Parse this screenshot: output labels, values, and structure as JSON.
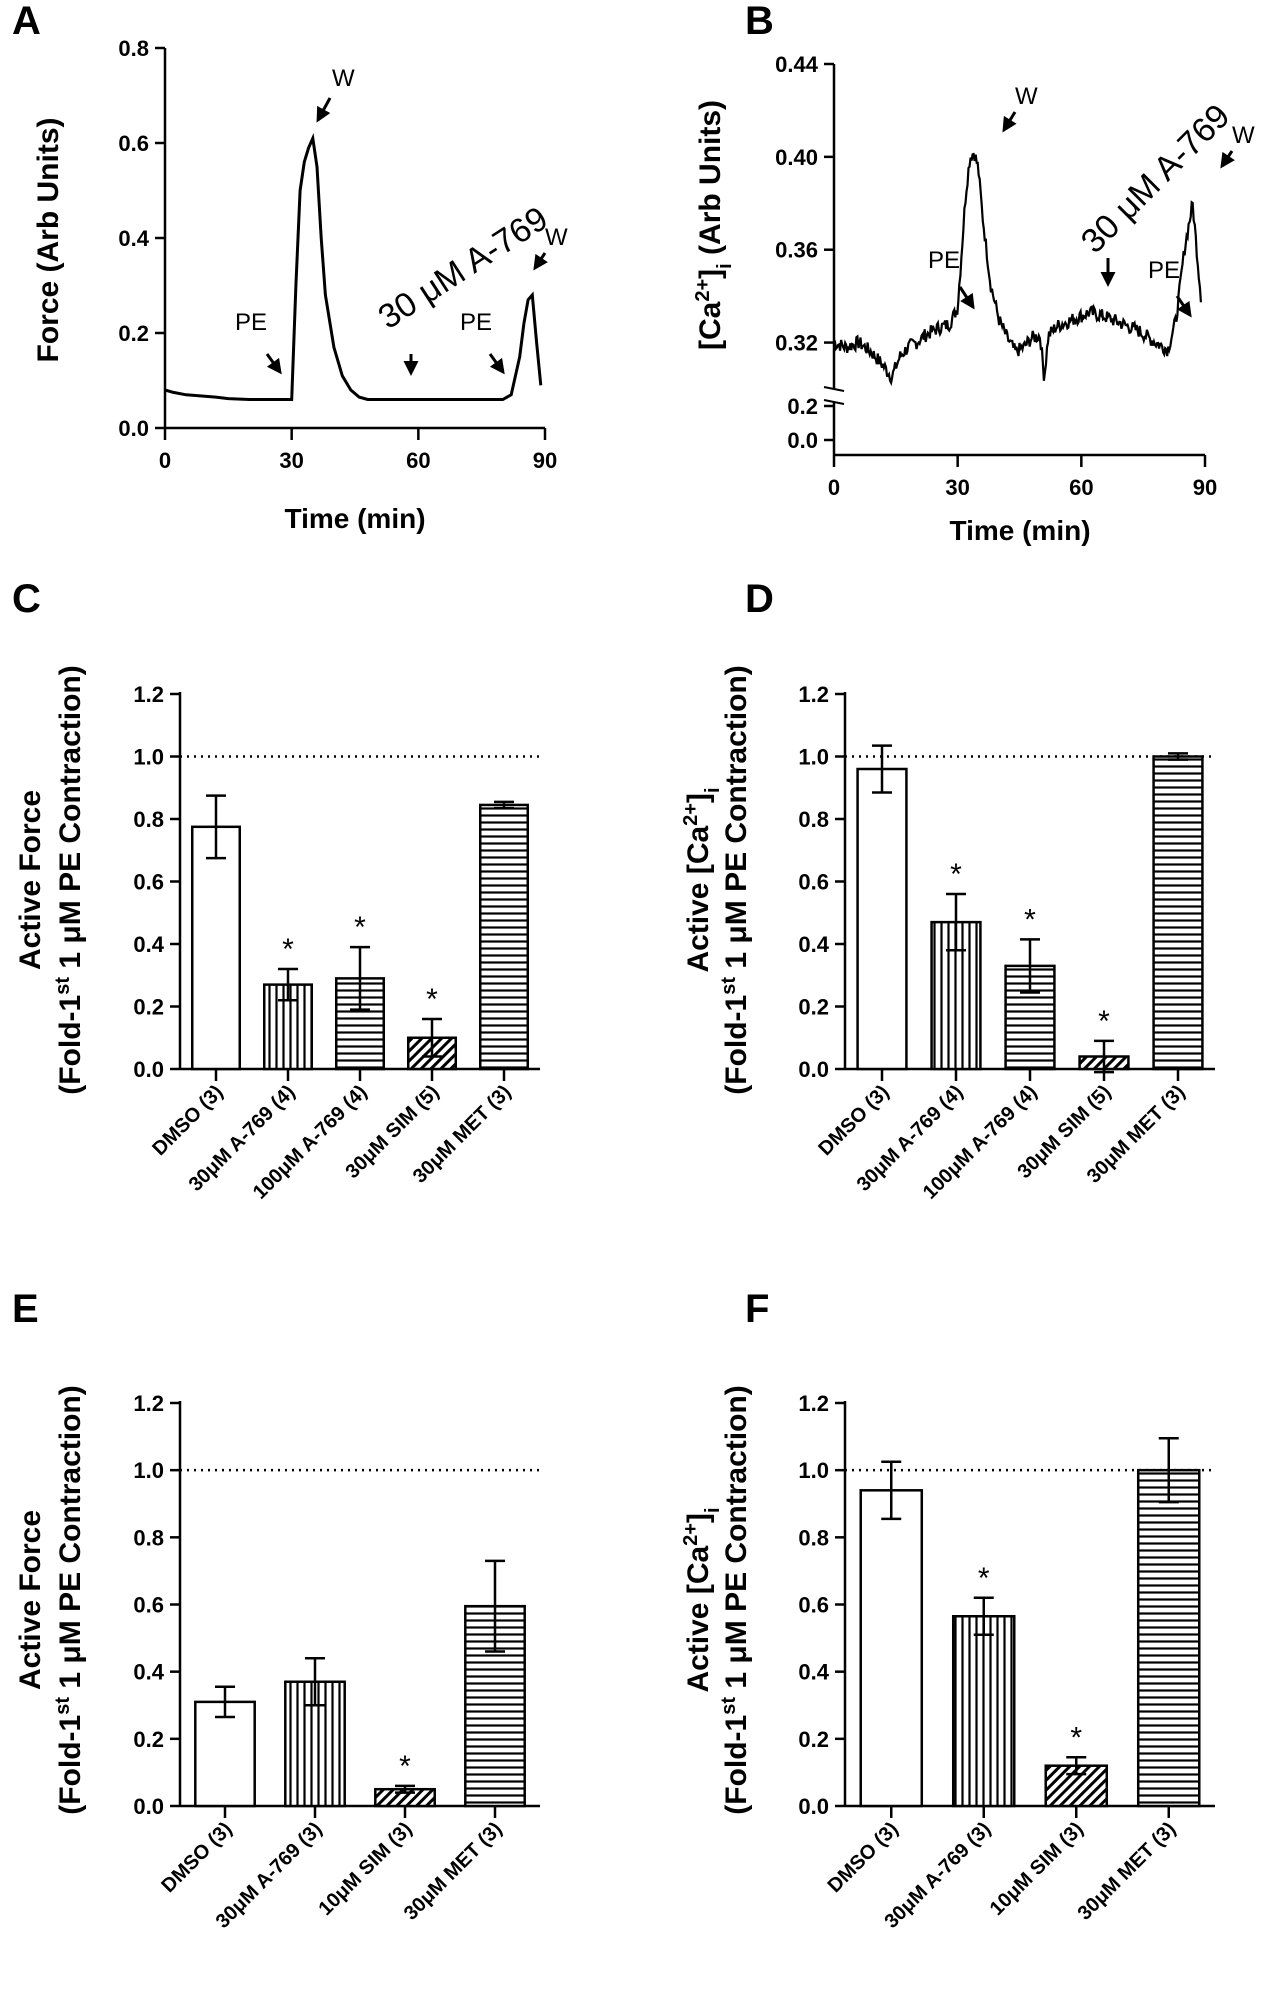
{
  "chart_data": [
    {
      "panel": "A",
      "type": "line",
      "xlabel": "Time (min)",
      "ylabel": "Force (Arb Units)",
      "xlim": [
        0,
        90
      ],
      "ylim": [
        0,
        0.8
      ],
      "xticks": [
        "0",
        "30",
        "60",
        "90"
      ],
      "yticks": [
        "0.0",
        "0.2",
        "0.4",
        "0.6",
        "0.8"
      ],
      "x": [
        0,
        2,
        5,
        8,
        12,
        15,
        20,
        25,
        28,
        30,
        31,
        32,
        33,
        34,
        35,
        36,
        37,
        38,
        40,
        42,
        44,
        46,
        48,
        50,
        55,
        60,
        65,
        70,
        75,
        80,
        82,
        84,
        85,
        86,
        87,
        88,
        89
      ],
      "y": [
        0.08,
        0.075,
        0.07,
        0.068,
        0.065,
        0.062,
        0.06,
        0.06,
        0.06,
        0.06,
        0.3,
        0.5,
        0.56,
        0.59,
        0.61,
        0.55,
        0.4,
        0.28,
        0.17,
        0.11,
        0.08,
        0.065,
        0.06,
        0.06,
        0.06,
        0.06,
        0.06,
        0.06,
        0.06,
        0.06,
        0.07,
        0.15,
        0.22,
        0.27,
        0.28,
        0.18,
        0.09
      ],
      "annotations": [
        "PE",
        "W",
        "30 μM  A-769",
        "PE",
        "W"
      ]
    },
    {
      "panel": "B",
      "type": "line",
      "xlabel": "Time (min)",
      "ylabel": "[Ca2+]i (Arb Units)",
      "xlim": [
        0,
        90
      ],
      "ylim_upper": [
        0.3,
        0.44
      ],
      "ylim_lower": [
        0,
        0.2
      ],
      "xticks": [
        "0",
        "30",
        "60",
        "90"
      ],
      "yticks": [
        "0.32",
        "0.36",
        "0.40",
        "0.44"
      ],
      "yticks_lower": [
        "0.0",
        "0.2"
      ],
      "x": [
        0,
        3,
        6,
        9,
        12,
        14,
        16,
        18,
        20,
        22,
        25,
        28,
        30,
        31,
        32,
        33,
        34,
        35,
        36,
        38,
        40,
        42,
        44,
        46,
        48,
        50,
        51,
        52,
        54,
        58,
        62,
        66,
        70,
        74,
        78,
        81,
        83,
        85,
        86,
        87,
        88,
        89
      ],
      "y": [
        0.32,
        0.318,
        0.32,
        0.316,
        0.31,
        0.305,
        0.314,
        0.318,
        0.32,
        0.323,
        0.326,
        0.328,
        0.335,
        0.36,
        0.385,
        0.4,
        0.402,
        0.395,
        0.375,
        0.345,
        0.33,
        0.322,
        0.316,
        0.318,
        0.322,
        0.323,
        0.305,
        0.323,
        0.327,
        0.33,
        0.333,
        0.331,
        0.328,
        0.325,
        0.32,
        0.317,
        0.33,
        0.36,
        0.37,
        0.38,
        0.36,
        0.34
      ],
      "annotations": [
        "PE",
        "W",
        "30 μM  A-769",
        "PE",
        "W"
      ]
    },
    {
      "panel": "C",
      "type": "bar",
      "ylabel_line1": "Active Force",
      "ylabel_line2": "(Fold-1st 1 μM PE Contraction)",
      "ylim": [
        0,
        1.2
      ],
      "yticks": [
        "0.0",
        "0.2",
        "0.4",
        "0.6",
        "0.8",
        "1.0",
        "1.2"
      ],
      "reference_line": 1.0,
      "categories": [
        "DMSO (3)",
        "30μM A-769 (4)",
        "100μM A-769 (4)",
        "30μM SIM (5)",
        "30μM MET (3)"
      ],
      "values": [
        0.775,
        0.27,
        0.29,
        0.1,
        0.845
      ],
      "errors": [
        0.1,
        0.05,
        0.1,
        0.06,
        0.01
      ],
      "significant": [
        false,
        true,
        true,
        true,
        false
      ],
      "patterns": [
        "none",
        "vertical",
        "horizontal",
        "diagonal",
        "horizontal"
      ]
    },
    {
      "panel": "D",
      "type": "bar",
      "ylabel_line1": "Active [Ca2+]i",
      "ylabel_line2": "(Fold-1st 1 μM PE Contraction)",
      "ylim": [
        0,
        1.2
      ],
      "yticks": [
        "0.0",
        "0.2",
        "0.4",
        "0.6",
        "0.8",
        "1.0",
        "1.2"
      ],
      "reference_line": 1.0,
      "categories": [
        "DMSO (3)",
        "30μM A-769 (4)",
        "100μM A-769 (4)",
        "30μM SIM (5)",
        "30μM MET (3)"
      ],
      "values": [
        0.96,
        0.47,
        0.33,
        0.04,
        1.0
      ],
      "errors": [
        0.075,
        0.09,
        0.085,
        0.05,
        0.01
      ],
      "significant": [
        false,
        true,
        true,
        true,
        false
      ],
      "patterns": [
        "none",
        "vertical",
        "horizontal",
        "diagonal",
        "horizontal"
      ]
    },
    {
      "panel": "E",
      "type": "bar",
      "ylabel_line1": "Active Force",
      "ylabel_line2": "(Fold-1st 1 μM PE Contraction)",
      "ylim": [
        0,
        1.2
      ],
      "yticks": [
        "0.0",
        "0.2",
        "0.4",
        "0.6",
        "0.8",
        "1.0",
        "1.2"
      ],
      "reference_line": 1.0,
      "categories": [
        "DMSO (3)",
        "30μM A-769 (3)",
        "10μM SIM (3)",
        "30μM MET (3)"
      ],
      "values": [
        0.31,
        0.37,
        0.05,
        0.595
      ],
      "errors": [
        0.045,
        0.07,
        0.01,
        0.135
      ],
      "significant": [
        false,
        false,
        true,
        false
      ],
      "patterns": [
        "none",
        "vertical",
        "diagonal",
        "horizontal"
      ]
    },
    {
      "panel": "F",
      "type": "bar",
      "ylabel_line1": "Active [Ca2+]i",
      "ylabel_line2": "(Fold-1st 1 μM PE Contraction)",
      "ylim": [
        0,
        1.2
      ],
      "yticks": [
        "0.0",
        "0.2",
        "0.4",
        "0.6",
        "0.8",
        "1.0",
        "1.2"
      ],
      "reference_line": 1.0,
      "categories": [
        "DMSO (3)",
        "30μM A-769 (3)",
        "10μM SIM (3)",
        "30μM MET (3)"
      ],
      "values": [
        0.94,
        0.565,
        0.12,
        1.0
      ],
      "errors": [
        0.085,
        0.055,
        0.025,
        0.095
      ],
      "significant": [
        false,
        true,
        true,
        false
      ],
      "patterns": [
        "none",
        "vertical",
        "diagonal",
        "horizontal"
      ]
    }
  ],
  "panel_labels": [
    "A",
    "B",
    "C",
    "D",
    "E",
    "F"
  ],
  "significance_symbol": "*"
}
